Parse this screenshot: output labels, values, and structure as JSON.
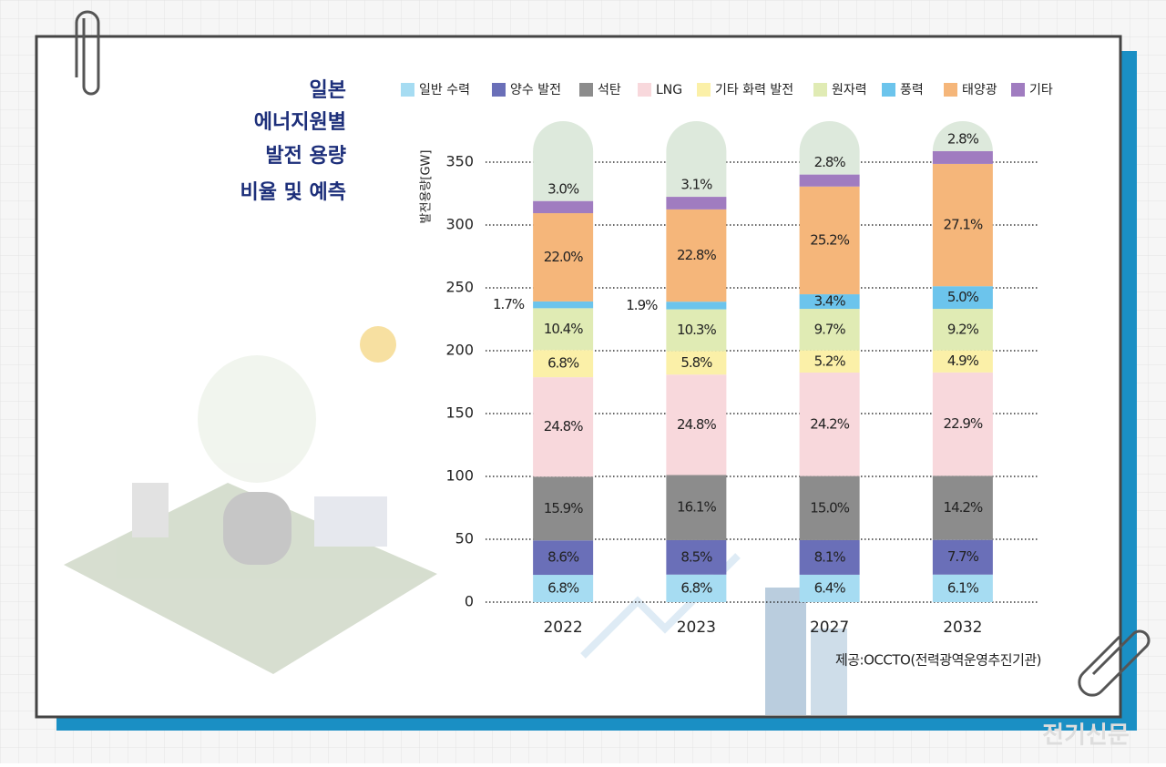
{
  "chart_data": {
    "type": "stacked-bar",
    "title_lines": [
      "일본",
      "에너지원별",
      "발전 용량",
      "비율 및 예측"
    ],
    "y_label": "발전용량[GW]",
    "source": "제공:OCCTO(전력광역운영추진기관)",
    "watermark": "전기신문",
    "categories": [
      "2022",
      "2023",
      "2027",
      "2032"
    ],
    "ylim": [
      0,
      350
    ],
    "yticks": [
      0,
      50,
      100,
      150,
      200,
      250,
      300,
      350
    ],
    "grid": true,
    "series": [
      {
        "name": "일반 수력",
        "color": "#a6dcf2",
        "values": [
          21.7,
          21.9,
          21.8,
          21.9
        ],
        "labels": [
          "6.8%",
          "6.8%",
          "6.4%",
          "6.1%"
        ]
      },
      {
        "name": "양수 발전",
        "color": "#6a6fb8",
        "values": [
          27.4,
          27.4,
          27.5,
          27.6
        ],
        "labels": [
          "8.6%",
          "8.5%",
          "8.1%",
          "7.7%"
        ]
      },
      {
        "name": "석탄",
        "color": "#8c8c8c",
        "values": [
          50.7,
          51.8,
          51.0,
          51.0
        ],
        "labels": [
          "15.9%",
          "16.1%",
          "15.0%",
          "14.2%"
        ]
      },
      {
        "name": "LNG",
        "color": "#f8d8dc",
        "values": [
          79.1,
          79.9,
          82.3,
          82.2
        ],
        "labels": [
          "24.8%",
          "24.8%",
          "24.2%",
          "22.9%"
        ]
      },
      {
        "name": "기타 화력 발전",
        "color": "#fbf0a8",
        "values": [
          21.7,
          18.7,
          17.7,
          17.6
        ],
        "labels": [
          "6.8%",
          "5.8%",
          "5.2%",
          "4.9%"
        ]
      },
      {
        "name": "원자력",
        "color": "#e0ebb4",
        "values": [
          33.2,
          33.2,
          33.0,
          33.0
        ],
        "labels": [
          "10.4%",
          "10.3%",
          "9.7%",
          "9.2%"
        ]
      },
      {
        "name": "풍력",
        "color": "#6cc4ec",
        "values": [
          5.4,
          6.1,
          11.6,
          18.0
        ],
        "labels": [
          "1.7%",
          "1.9%",
          "3.4%",
          "5.0%"
        ]
      },
      {
        "name": "태양광",
        "color": "#f5b67a",
        "values": [
          70.2,
          73.4,
          85.7,
          97.3
        ],
        "labels": [
          "22.0%",
          "22.8%",
          "25.2%",
          "27.1%"
        ]
      },
      {
        "name": "기타",
        "color": "#a07cc0",
        "values": [
          9.6,
          10.0,
          9.5,
          10.1
        ],
        "labels": [
          "3.0%",
          "3.1%",
          "2.8%",
          "2.8%"
        ]
      }
    ]
  }
}
